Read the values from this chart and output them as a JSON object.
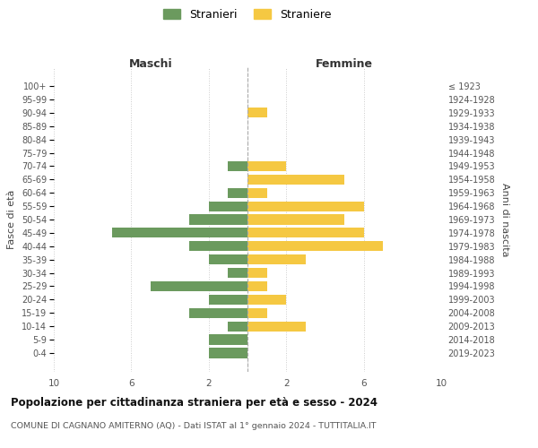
{
  "age_groups": [
    "0-4",
    "5-9",
    "10-14",
    "15-19",
    "20-24",
    "25-29",
    "30-34",
    "35-39",
    "40-44",
    "45-49",
    "50-54",
    "55-59",
    "60-64",
    "65-69",
    "70-74",
    "75-79",
    "80-84",
    "85-89",
    "90-94",
    "95-99",
    "100+"
  ],
  "birth_years": [
    "2019-2023",
    "2014-2018",
    "2009-2013",
    "2004-2008",
    "1999-2003",
    "1994-1998",
    "1989-1993",
    "1984-1988",
    "1979-1983",
    "1974-1978",
    "1969-1973",
    "1964-1968",
    "1959-1963",
    "1954-1958",
    "1949-1953",
    "1944-1948",
    "1939-1943",
    "1934-1938",
    "1929-1933",
    "1924-1928",
    "≤ 1923"
  ],
  "maschi": [
    2,
    2,
    1,
    3,
    2,
    5,
    1,
    2,
    3,
    7,
    3,
    2,
    1,
    0,
    1,
    0,
    0,
    0,
    0,
    0,
    0
  ],
  "femmine": [
    0,
    0,
    3,
    1,
    2,
    1,
    1,
    3,
    7,
    6,
    5,
    6,
    1,
    5,
    2,
    0,
    0,
    0,
    1,
    0,
    0
  ],
  "color_maschi": "#6b9a5e",
  "color_femmine": "#f5c842",
  "title": "Popolazione per cittadinanza straniera per età e sesso - 2024",
  "subtitle": "COMUNE DI CAGNANO AMITERNO (AQ) - Dati ISTAT al 1° gennaio 2024 - TUTTITALIA.IT",
  "xlabel_left": "Maschi",
  "xlabel_right": "Femmine",
  "ylabel_left": "Fasce di età",
  "ylabel_right": "Anni di nascita",
  "legend_maschi": "Stranieri",
  "legend_femmine": "Straniere",
  "xlim": 10,
  "xtick_positions": [
    -10,
    -6,
    -2,
    0,
    2,
    6,
    10
  ],
  "xticklabels": [
    "10",
    "6",
    "2",
    "",
    "2",
    "6",
    "10"
  ],
  "background_color": "#ffffff",
  "grid_color": "#cccccc"
}
